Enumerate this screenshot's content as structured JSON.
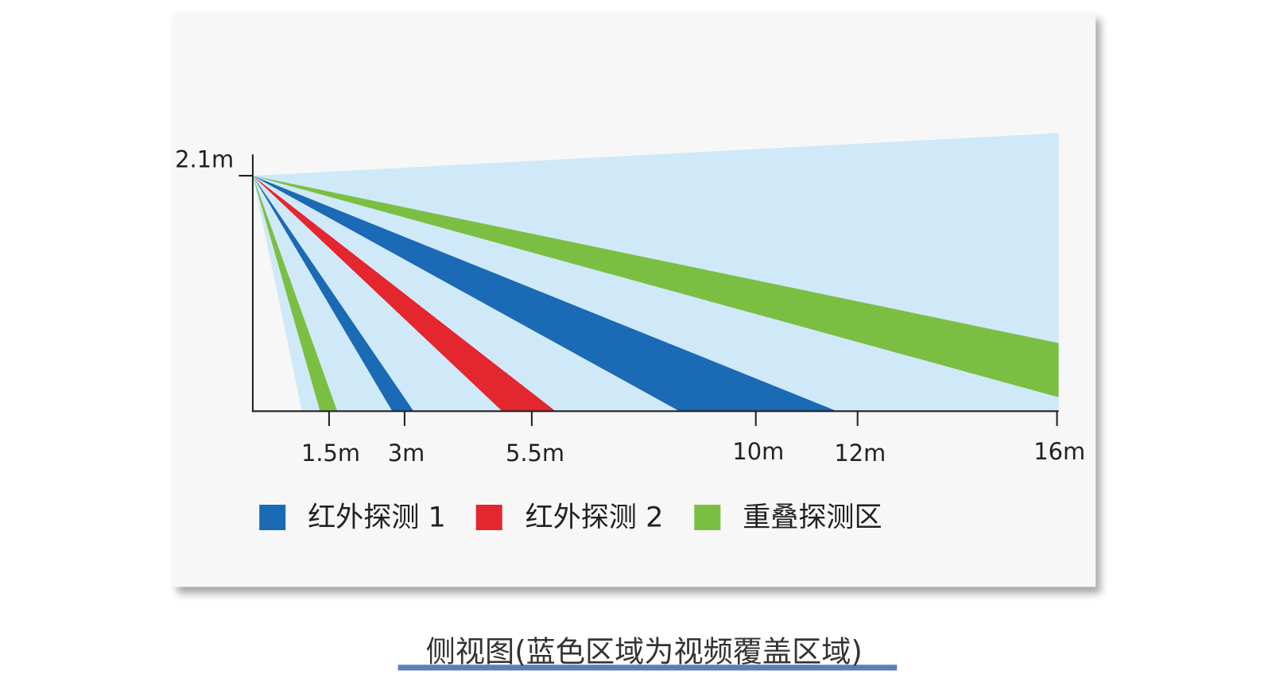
{
  "diagram": {
    "height_label": "2.1m",
    "distance_labels": [
      "1.5m",
      "3m",
      "5.5m",
      "10m",
      "12m",
      "16m"
    ],
    "legend": [
      "红外探测 1",
      "红外探测 2",
      "重叠探测区"
    ],
    "caption": "侧视图(蓝色区域为视频覆盖区域)"
  }
}
